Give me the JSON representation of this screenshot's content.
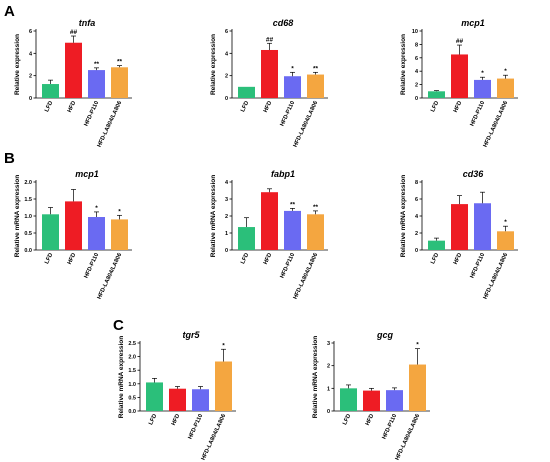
{
  "figure": {
    "panels": [
      {
        "letter": "A"
      },
      {
        "letter": "B"
      },
      {
        "letter": "C"
      }
    ]
  },
  "colors": {
    "LFD": "#2bbf7a",
    "HFD": "#ee1c24",
    "HFD-P110": "#6a6af2",
    "HFD-LA804/LA806": "#f4a640"
  },
  "chart_data": [
    {
      "type": "bar",
      "panel": "A",
      "title": "tnfa",
      "ylabel": "Relative expression",
      "ylim": [
        0,
        6
      ],
      "yticks": [
        0,
        2,
        4,
        6
      ],
      "categories": [
        "LFD",
        "HFD",
        "HFD-P110",
        "HFD-LA804/LA806"
      ],
      "values": [
        1.25,
        4.95,
        2.5,
        2.75
      ],
      "errors": [
        0.35,
        0.6,
        0.2,
        0.15
      ],
      "annotations": [
        "",
        "##",
        "**",
        "**"
      ],
      "grid": false,
      "legend": "none"
    },
    {
      "type": "bar",
      "panel": "A",
      "title": "cd68",
      "ylabel": "Relative expression",
      "ylim": [
        0,
        6
      ],
      "yticks": [
        0,
        2,
        4,
        6
      ],
      "categories": [
        "LFD",
        "HFD",
        "HFD-P110",
        "HFD-LA804/LA806"
      ],
      "values": [
        1.0,
        4.3,
        1.95,
        2.1
      ],
      "errors": [
        0.0,
        0.6,
        0.35,
        0.2
      ],
      "annotations": [
        "",
        "##",
        "*",
        "**"
      ],
      "grid": false,
      "legend": "none"
    },
    {
      "type": "bar",
      "panel": "A",
      "title": "mcp1",
      "ylabel": "Relative expression",
      "ylim": [
        0,
        10
      ],
      "yticks": [
        0,
        2,
        4,
        6,
        8,
        10
      ],
      "categories": [
        "LFD",
        "HFD",
        "HFD-P110",
        "HFD-LA804/LA806"
      ],
      "values": [
        1.0,
        6.5,
        2.7,
        2.9
      ],
      "errors": [
        0.1,
        1.4,
        0.4,
        0.5
      ],
      "annotations": [
        "",
        "##",
        "*",
        "*"
      ],
      "grid": false,
      "legend": "none"
    },
    {
      "type": "bar",
      "panel": "B",
      "title": "mcp1",
      "ylabel": "Relative mRNA expression",
      "ylim": [
        0,
        2.0
      ],
      "yticks": [
        0.0,
        0.5,
        1.0,
        1.5,
        2.0
      ],
      "categories": [
        "LFD",
        "HFD",
        "HFD-P110",
        "HFD-LA804/LA806"
      ],
      "values": [
        1.05,
        1.43,
        0.97,
        0.9
      ],
      "errors": [
        0.2,
        0.35,
        0.15,
        0.12
      ],
      "annotations": [
        "",
        "",
        "*",
        "*"
      ],
      "grid": false,
      "legend": "none"
    },
    {
      "type": "bar",
      "panel": "B",
      "title": "fabp1",
      "ylabel": "Relative mRNA expression",
      "ylim": [
        0,
        4
      ],
      "yticks": [
        0,
        1,
        2,
        3,
        4
      ],
      "categories": [
        "LFD",
        "HFD",
        "HFD-P110",
        "HFD-LA804/LA806"
      ],
      "values": [
        1.35,
        3.4,
        2.3,
        2.1
      ],
      "errors": [
        0.55,
        0.2,
        0.15,
        0.2
      ],
      "annotations": [
        "",
        "",
        "**",
        "**"
      ],
      "grid": false,
      "legend": "none"
    },
    {
      "type": "bar",
      "panel": "B",
      "title": "cd36",
      "ylabel": "Relative mRNA expression",
      "ylim": [
        0,
        8
      ],
      "yticks": [
        0,
        2,
        4,
        6,
        8
      ],
      "categories": [
        "LFD",
        "HFD",
        "HFD-P110",
        "HFD-LA804/LA806"
      ],
      "values": [
        1.1,
        5.4,
        5.5,
        2.2
      ],
      "errors": [
        0.3,
        1.0,
        1.3,
        0.6
      ],
      "annotations": [
        "",
        "",
        "",
        "*"
      ],
      "grid": false,
      "legend": "none"
    },
    {
      "type": "bar",
      "panel": "C",
      "title": "tgr5",
      "ylabel": "Relative mRNA expression",
      "ylim": [
        0,
        2.5
      ],
      "yticks": [
        0.0,
        0.5,
        1.0,
        1.5,
        2.0,
        2.5
      ],
      "categories": [
        "LFD",
        "HFD",
        "HFD-P110",
        "HFD-LA804/LA806"
      ],
      "values": [
        1.05,
        0.82,
        0.8,
        1.82
      ],
      "errors": [
        0.15,
        0.08,
        0.1,
        0.45
      ],
      "annotations": [
        "",
        "",
        "",
        "*"
      ],
      "grid": false,
      "legend": "none"
    },
    {
      "type": "bar",
      "panel": "C",
      "title": "gcg",
      "ylabel": "Relative mRNA expression",
      "ylim": [
        0,
        3
      ],
      "yticks": [
        0,
        1,
        2,
        3
      ],
      "categories": [
        "LFD",
        "HFD",
        "HFD-P110",
        "HFD-LA804/LA806"
      ],
      "values": [
        1.0,
        0.9,
        0.92,
        2.05
      ],
      "errors": [
        0.15,
        0.1,
        0.1,
        0.7
      ],
      "annotations": [
        "",
        "",
        "",
        "*"
      ],
      "grid": false,
      "legend": "none"
    }
  ]
}
